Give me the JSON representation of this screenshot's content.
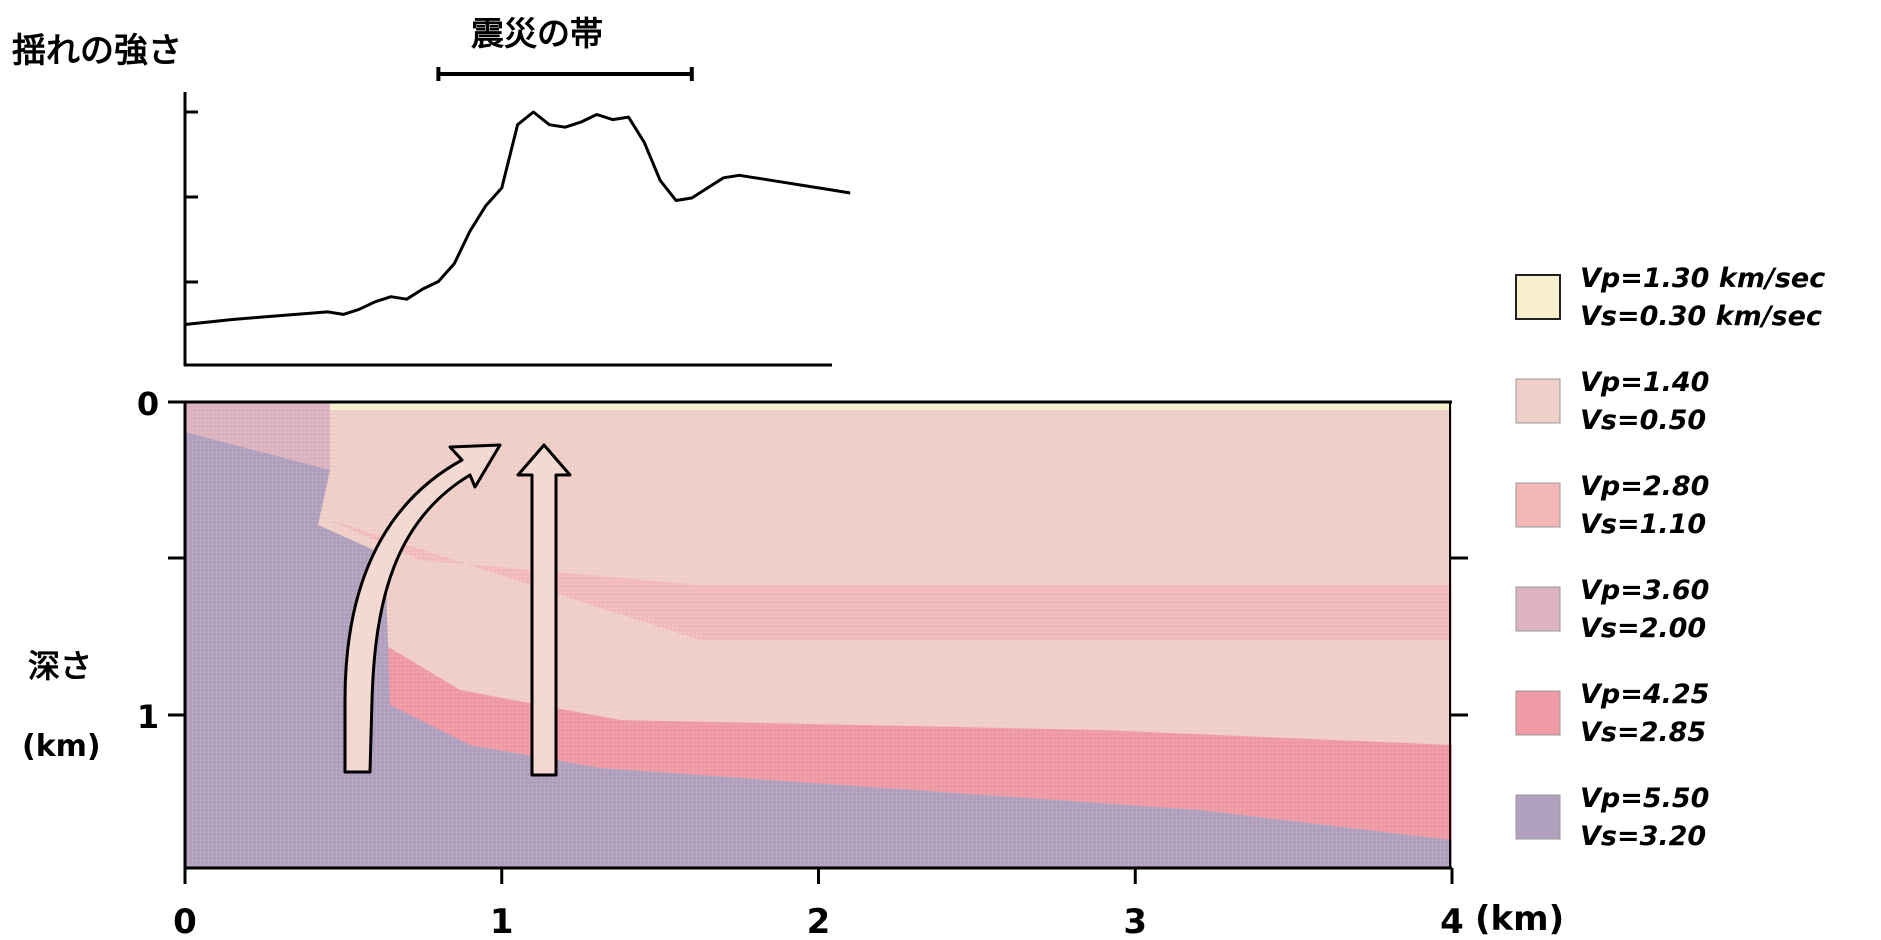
{
  "labels": {
    "shaking_title": "揺れの強さ",
    "damage_band": "震災の帯",
    "depth_label": "深さ",
    "depth_unit": "(km)",
    "x_unit": "(km)"
  },
  "chart_data": {
    "type": "line",
    "title": "揺れの強さ",
    "x": [
      0.0,
      0.15,
      0.25,
      0.35,
      0.45,
      0.5,
      0.55,
      0.6,
      0.65,
      0.7,
      0.75,
      0.8,
      0.85,
      0.9,
      0.95,
      1.0,
      1.05,
      1.1,
      1.15,
      1.2,
      1.25,
      1.3,
      1.35,
      1.4,
      1.45,
      1.5,
      1.55,
      1.6,
      1.65,
      1.7,
      1.75,
      1.8,
      1.85,
      1.9,
      1.95,
      2.0,
      2.05,
      2.1
    ],
    "y": [
      0.16,
      0.18,
      0.19,
      0.2,
      0.21,
      0.2,
      0.22,
      0.25,
      0.27,
      0.26,
      0.3,
      0.33,
      0.4,
      0.53,
      0.63,
      0.7,
      0.95,
      1.0,
      0.95,
      0.94,
      0.96,
      0.99,
      0.97,
      0.98,
      0.88,
      0.73,
      0.65,
      0.66,
      0.7,
      0.74,
      0.75,
      0.74,
      0.73,
      0.72,
      0.71,
      0.7,
      0.69,
      0.68
    ],
    "xlim": [
      0,
      2.1
    ],
    "ylim": [
      0,
      1.05
    ],
    "y_ticks": [
      0.22,
      0.55,
      0.88
    ],
    "band": {
      "label": "震災の帯",
      "x_start": 0.8,
      "x_end": 1.6
    }
  },
  "cross_section": {
    "x_ticks": [
      "0",
      "1",
      "2",
      "3",
      "4"
    ],
    "depth_ticks": [
      "0",
      "1"
    ],
    "xlim": [
      0,
      4
    ],
    "depth_range": [
      0,
      1.5
    ]
  },
  "legend": [
    {
      "vp": "Vp=1.30 km/sec",
      "vs": "Vs=0.30 km/sec",
      "color": "#f7efce"
    },
    {
      "vp": "Vp=1.40",
      "vs": "Vs=0.50",
      "color": "#f0cfc9"
    },
    {
      "vp": "Vp=2.80",
      "vs": "Vs=1.10",
      "color": "#f3b7b8"
    },
    {
      "vp": "Vp=3.60",
      "vs": "Vs=2.00",
      "color": "#dcb3bf"
    },
    {
      "vp": "Vp=4.25",
      "vs": "Vs=2.85",
      "color": "#ef9aa4"
    },
    {
      "vp": "Vp=5.50",
      "vs": "Vs=3.20",
      "color": "#b1a1bf"
    }
  ]
}
